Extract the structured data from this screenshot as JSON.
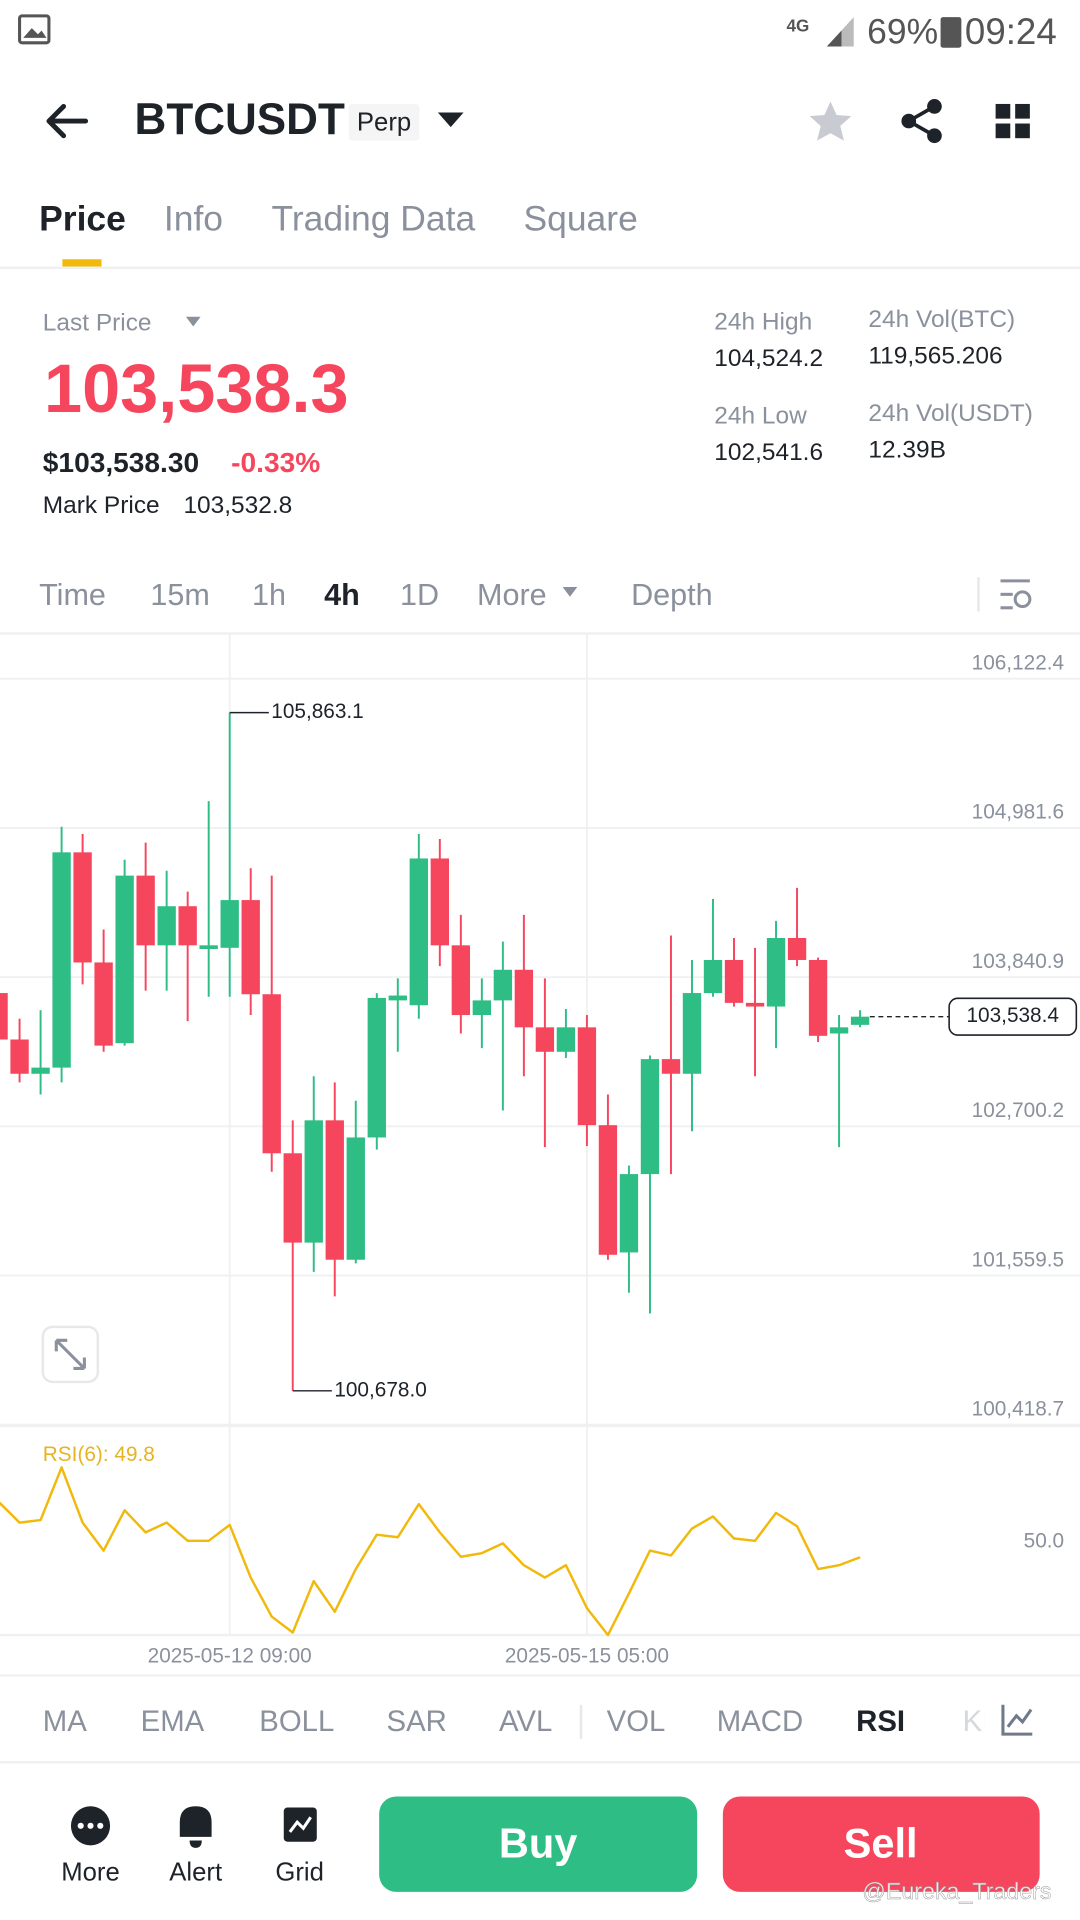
{
  "status_bar": {
    "network": "4G",
    "battery": "69%",
    "time": "09:24"
  },
  "header": {
    "symbol": "BTCUSDT",
    "badge": "Perp"
  },
  "tabs": [
    "Price",
    "Info",
    "Trading Data",
    "Square"
  ],
  "ticker": {
    "last_price_label": "Last Price",
    "last_price": "103,538.3",
    "usd_price": "$103,538.30",
    "change": "-0.33%",
    "mark_price_label": "Mark Price",
    "mark_price": "103,532.8",
    "high_label": "24h High",
    "high": "104,524.2",
    "low_label": "24h Low",
    "low": "102,541.6",
    "vol_btc_label": "24h Vol(BTC)",
    "vol_btc": "119,565.206",
    "vol_usdt_label": "24h Vol(USDT)",
    "vol_usdt": "12.39B"
  },
  "intervals": [
    "Time",
    "15m",
    "1h",
    "4h",
    "1D",
    "More",
    "Depth"
  ],
  "chart_data": [
    {
      "type": "candlestick",
      "categories": [
        null,
        null,
        null,
        null,
        null,
        null,
        null,
        null,
        null,
        null,
        null,
        "2025-05-12 09:00",
        null,
        null,
        null,
        null,
        null,
        null,
        null,
        null,
        null,
        null,
        null,
        null,
        null,
        null,
        null,
        null,
        "2025-05-15 05:00",
        null,
        null,
        null,
        null,
        null,
        null,
        null,
        null,
        null,
        null,
        null,
        null,
        null
      ],
      "open": [
        103719,
        103364,
        103102,
        103149,
        104795,
        103953,
        103336,
        104617,
        104084,
        104383,
        104056,
        104065,
        104430,
        103710,
        102494,
        101811,
        102746,
        101680,
        102615,
        103663,
        103626,
        104748,
        104084,
        103551,
        103663,
        103897,
        103457,
        103270,
        103457,
        102709,
        101736,
        102335,
        103214,
        103102,
        103719,
        103972,
        103644,
        103616,
        104140,
        103972,
        103410,
        103476
      ],
      "high": [
        103803,
        103523,
        103588,
        104991,
        104935,
        104205,
        104738,
        104869,
        104654,
        104495,
        105187,
        105863.1,
        104673,
        104617,
        102746,
        103083,
        103036,
        102896,
        103719,
        103831,
        104935,
        104897,
        104317,
        103831,
        104112,
        104317,
        103831,
        103597,
        103551,
        102943,
        102400,
        103242,
        104159,
        103972,
        104439,
        104140,
        104065,
        104271,
        104523,
        103990,
        103551,
        103588
      ],
      "low": [
        103336,
        103036,
        102943,
        103036,
        103785,
        103270,
        103317,
        103738,
        103738,
        103504,
        103691,
        103691,
        103551,
        102353,
        100678.0,
        101587,
        101400,
        101652,
        102522,
        103270,
        103523,
        103925,
        103410,
        103298,
        102821,
        103083,
        102541,
        103223,
        102550,
        101680,
        101428,
        101269,
        102335,
        102662,
        103691,
        103616,
        103083,
        103298,
        103925,
        103345,
        102541,
        103457
      ],
      "close": [
        103364,
        103102,
        103149,
        104795,
        103953,
        103317,
        104617,
        104084,
        104383,
        104084,
        104084,
        104430,
        103710,
        102494,
        101811,
        102746,
        101680,
        102615,
        103682,
        103700,
        104748,
        104084,
        103551,
        103663,
        103897,
        103457,
        103270,
        103457,
        102709,
        101718,
        102335,
        103214,
        103102,
        103719,
        103972,
        103644,
        103616,
        104140,
        103972,
        103392,
        103457,
        103538.4
      ],
      "colors": {
        "up": "#2ebd85",
        "down": "#f6465d"
      },
      "ylim": [
        100418.7,
        106459.0
      ],
      "yticks": [
        {
          "value": 106122.4,
          "label": "106,122.4"
        },
        {
          "value": 104981.6,
          "label": "104,981.6"
        },
        {
          "value": 103840.9,
          "label": "103,840.9"
        },
        {
          "value": 102700.2,
          "label": "102,700.2"
        },
        {
          "value": 101559.5,
          "label": "101,559.5"
        },
        {
          "value": 100418.7,
          "label": "100,418.7"
        }
      ],
      "grid": true,
      "annotations": [
        {
          "value": 105863.1,
          "label": "105,863.1"
        },
        {
          "value": 100678.0,
          "label": "100,678.0"
        }
      ],
      "last_price": {
        "value": 103538.4,
        "label": "103,538.4"
      }
    },
    {
      "type": "line",
      "title": "RSI(6): 49.8",
      "values": [
        71.4,
        63.3,
        64.3,
        84.8,
        63.3,
        52.4,
        68.1,
        59.5,
        63.3,
        56.2,
        56.2,
        62.4,
        41.9,
        26.7,
        20.5,
        40.5,
        28.6,
        45.2,
        58.6,
        57.6,
        70.5,
        59.5,
        50.0,
        51.4,
        55.2,
        46.7,
        41.9,
        46.7,
        30.0,
        19.5,
        35.7,
        52.4,
        50.5,
        61.0,
        65.7,
        57.1,
        56.2,
        67.1,
        61.9,
        45.2,
        46.7,
        49.8
      ],
      "color": "#f0b90b",
      "ylim": [
        19.5,
        100
      ],
      "yticks": [
        {
          "value": 50,
          "label": "50.0"
        }
      ],
      "grid": false
    }
  ],
  "indicators": [
    "MA",
    "EMA",
    "BOLL",
    "SAR",
    "AVL",
    "VOL",
    "MACD",
    "RSI",
    "KD"
  ],
  "bottom_bar": {
    "actions": [
      "More",
      "Alert",
      "Grid"
    ],
    "buy": "Buy",
    "sell": "Sell"
  },
  "watermark": "@Eureka_Traders"
}
